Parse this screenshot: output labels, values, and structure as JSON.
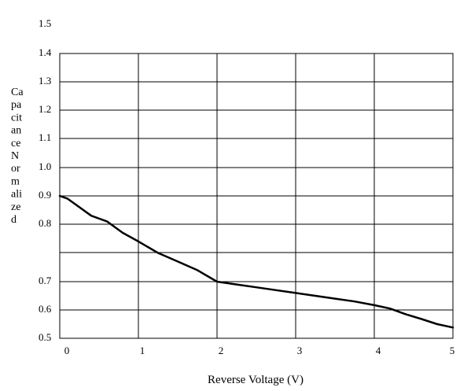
{
  "chart_data": {
    "type": "line",
    "title": "",
    "xlabel": "Reverse Voltage (V)",
    "ylabel": "Capacitance Normalized",
    "ylabel_lines": [
      "Ca",
      "pa",
      "cit",
      "an",
      "ce",
      "N",
      "or",
      "m",
      "ali",
      "ze",
      "d"
    ],
    "xlim": [
      0,
      5
    ],
    "grid": true,
    "x_ticks": [
      {
        "value": 0,
        "label": "0"
      },
      {
        "value": 1,
        "label": "1"
      },
      {
        "value": 2,
        "label": "2"
      },
      {
        "value": 3,
        "label": "3"
      },
      {
        "value": 4,
        "label": "4"
      },
      {
        "value": 5,
        "label": "5"
      }
    ],
    "y_ticks": [
      {
        "value": 0.5,
        "label": "0.5"
      },
      {
        "value": 0.6,
        "label": "0.6"
      },
      {
        "value": 0.7,
        "label": "0.7"
      },
      {
        "value": 0.8,
        "label": "0.8"
      },
      {
        "value": 0.9,
        "label": "0.9"
      },
      {
        "value": 1.0,
        "label": "1.0"
      },
      {
        "value": 1.1,
        "label": "1.1"
      },
      {
        "value": 1.2,
        "label": "1.2"
      },
      {
        "value": 1.3,
        "label": "1.3"
      },
      {
        "value": 1.4,
        "label": "1.4"
      },
      {
        "value": 1.5,
        "label": "1.5"
      }
    ],
    "series": [
      {
        "color": "#000000",
        "x": [
          0,
          0.1,
          0.25,
          0.4,
          0.6,
          0.8,
          1.0,
          1.25,
          1.5,
          1.75,
          2.0,
          2.25,
          2.5,
          2.75,
          3.0,
          3.25,
          3.5,
          3.75,
          4.0,
          4.2,
          4.4,
          4.6,
          4.8,
          5.0
        ],
        "y": [
          0.9,
          0.89,
          0.86,
          0.83,
          0.81,
          0.785,
          0.77,
          0.75,
          0.735,
          0.72,
          0.7,
          0.69,
          0.68,
          0.67,
          0.66,
          0.65,
          0.64,
          0.63,
          0.617,
          0.605,
          0.585,
          0.568,
          0.55,
          0.538
        ]
      }
    ]
  }
}
